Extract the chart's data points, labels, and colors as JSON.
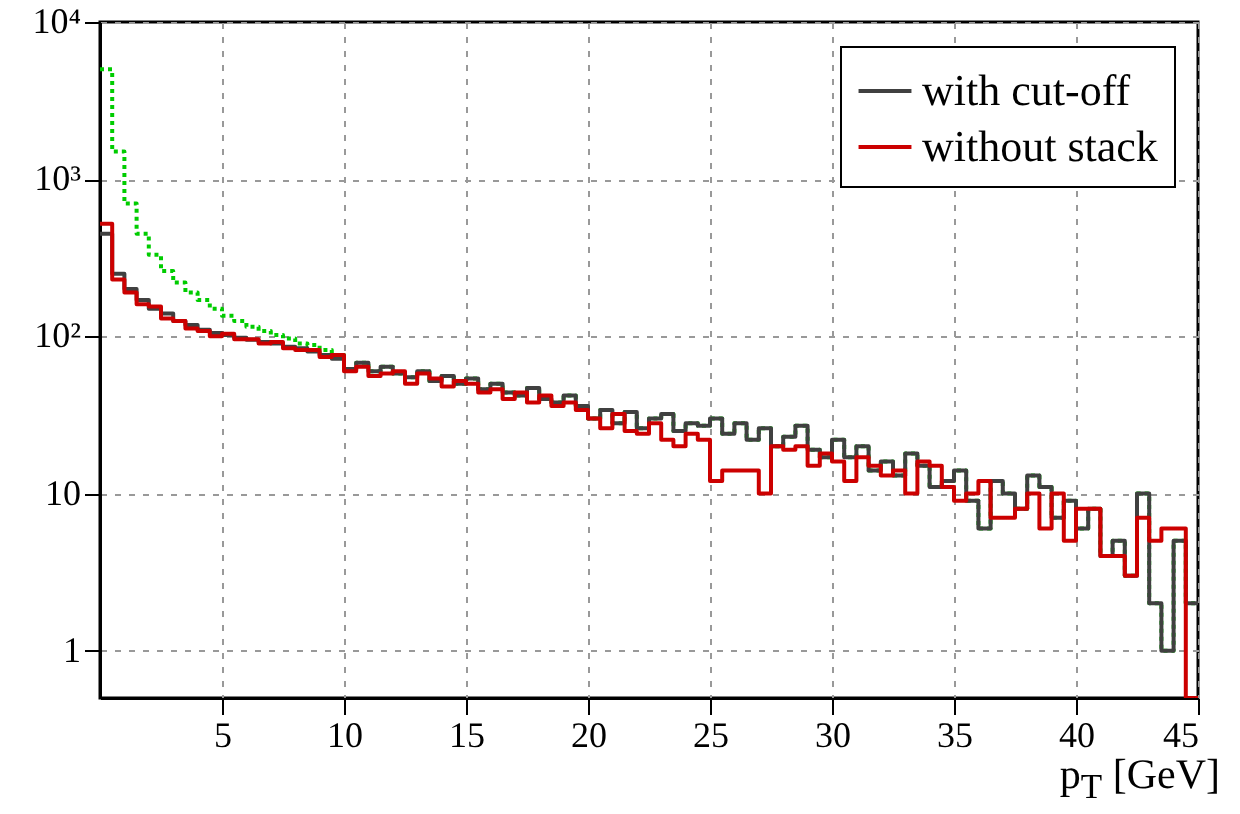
{
  "chart_data": {
    "type": "histogram",
    "xlabel": "p$_{T}$ [GeV]",
    "bins": [
      0,
      0.5,
      1,
      1.5,
      2,
      2.5,
      3,
      3.5,
      4,
      4.5,
      5,
      5.5,
      6,
      6.5,
      7,
      7.5,
      8,
      8.5,
      9,
      9.5,
      10,
      10.5,
      11,
      11.5,
      12,
      12.5,
      13,
      13.5,
      14,
      14.5,
      15,
      15.5,
      16,
      16.5,
      17,
      17.5,
      18,
      18.5,
      19,
      19.5,
      20,
      20.5,
      21,
      21.5,
      22,
      22.5,
      23,
      23.5,
      24,
      24.5,
      25,
      25.5,
      26,
      26.5,
      27,
      27.5,
      28,
      28.5,
      29,
      29.5,
      30,
      30.5,
      31,
      31.5,
      32,
      32.5,
      33,
      33.5,
      34,
      34.5,
      35,
      35.5,
      36,
      36.5,
      37,
      37.5,
      38,
      38.5,
      39,
      39.5,
      40,
      40.5,
      41,
      41.5,
      42,
      42.5,
      43,
      43.5,
      44,
      44.5,
      45
    ],
    "series": [
      {
        "color": "#00cc00",
        "line_style": "dotted",
        "values": [
          5000,
          1500,
          700,
          450,
          330,
          260,
          220,
          190,
          170,
          150,
          135,
          125,
          115,
          108,
          102,
          97,
          90,
          88,
          82,
          76,
          62,
          68,
          60,
          64,
          58,
          55,
          60,
          52,
          56,
          50,
          54,
          46,
          50,
          44,
          42,
          47,
          40,
          38,
          42,
          36,
          30,
          34,
          28,
          33,
          26,
          30,
          32,
          25,
          28,
          27,
          30,
          24,
          28,
          22,
          26,
          20,
          23,
          27,
          19,
          17,
          22,
          17,
          20,
          14,
          16,
          13,
          18,
          15,
          11,
          12,
          14,
          9,
          6,
          12,
          10,
          8,
          13,
          11,
          7,
          9,
          6,
          8,
          4,
          5,
          3,
          10,
          2,
          1,
          5,
          2
        ]
      },
      {
        "name": "with cut-off",
        "color": "#404040",
        "line_style": "solid",
        "values": [
          450,
          250,
          200,
          170,
          150,
          140,
          125,
          118,
          110,
          105,
          102,
          98,
          95,
          92,
          90,
          86,
          84,
          80,
          76,
          72,
          62,
          68,
          60,
          64,
          58,
          55,
          60,
          52,
          56,
          50,
          54,
          46,
          50,
          44,
          42,
          47,
          40,
          38,
          42,
          36,
          30,
          34,
          28,
          33,
          26,
          30,
          32,
          25,
          28,
          27,
          30,
          24,
          28,
          22,
          26,
          20,
          23,
          27,
          19,
          17,
          22,
          17,
          20,
          14,
          16,
          13,
          18,
          15,
          11,
          12,
          14,
          9,
          6,
          12,
          10,
          8,
          13,
          11,
          7,
          9,
          6,
          8,
          4,
          5,
          3,
          10,
          2,
          1,
          5,
          2
        ]
      },
      {
        "name": "without stack",
        "color": "#cc0000",
        "line_style": "solid",
        "values": [
          520,
          230,
          190,
          160,
          155,
          130,
          125,
          112,
          108,
          100,
          104,
          96,
          96,
          90,
          92,
          84,
          82,
          82,
          74,
          76,
          60,
          64,
          56,
          58,
          60,
          50,
          58,
          54,
          48,
          52,
          50,
          44,
          46,
          40,
          44,
          38,
          42,
          36,
          38,
          34,
          30,
          26,
          32,
          25,
          24,
          28,
          22,
          20,
          24,
          22,
          12,
          14,
          14,
          14,
          10,
          20,
          19,
          20,
          15,
          18,
          16,
          12,
          17,
          15,
          13,
          14,
          10,
          16,
          15,
          11,
          9,
          10,
          12,
          7,
          7,
          8,
          10,
          6,
          10,
          5,
          8,
          8,
          4,
          4,
          3,
          7,
          5,
          6,
          6,
          0.5
        ]
      }
    ],
    "log": true,
    "grid": true,
    "legend": "top right",
    "xlim": [
      0,
      45
    ],
    "xticks": [
      5,
      10,
      15,
      20,
      25,
      30,
      35,
      40,
      45
    ],
    "ylim": [
      0.5,
      10000
    ],
    "yticks": [
      1,
      10,
      {
        "value": 100,
        "label": "10²"
      },
      {
        "value": 1000,
        "label": "10³"
      },
      {
        "value": 10000,
        "label": "10⁴"
      }
    ]
  }
}
